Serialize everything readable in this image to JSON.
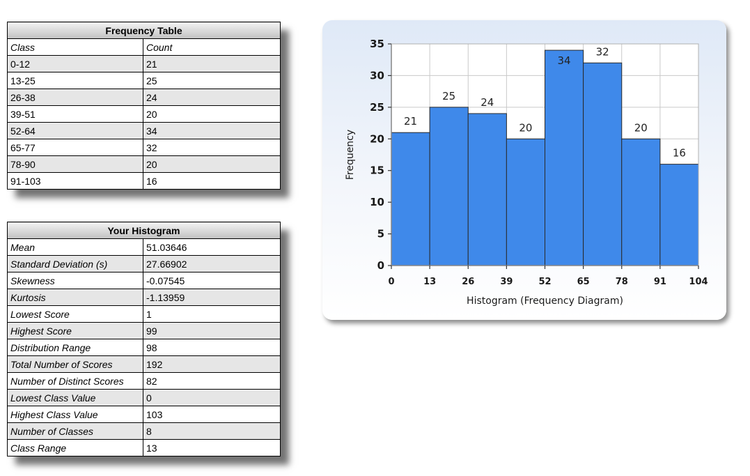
{
  "frequency_table": {
    "title": "Frequency Table",
    "headers": [
      "Class",
      "Count"
    ],
    "rows": [
      {
        "class": "0-12",
        "count": "21"
      },
      {
        "class": "13-25",
        "count": "25"
      },
      {
        "class": "26-38",
        "count": "24"
      },
      {
        "class": "39-51",
        "count": "20"
      },
      {
        "class": "52-64",
        "count": "34"
      },
      {
        "class": "65-77",
        "count": "32"
      },
      {
        "class": "78-90",
        "count": "20"
      },
      {
        "class": "91-103",
        "count": "16"
      }
    ]
  },
  "histogram_stats": {
    "title": "Your Histogram",
    "rows": [
      {
        "label": "Mean",
        "value": "51.03646"
      },
      {
        "label": "Standard Deviation (s)",
        "value": "27.66902"
      },
      {
        "label": "Skewness",
        "value": "-0.07545"
      },
      {
        "label": "Kurtosis",
        "value": "-1.13959"
      },
      {
        "label": "Lowest Score",
        "value": "1"
      },
      {
        "label": "Highest Score",
        "value": "99"
      },
      {
        "label": "Distribution Range",
        "value": "98"
      },
      {
        "label": "Total Number of Scores",
        "value": "192"
      },
      {
        "label": "Number of Distinct Scores",
        "value": "82"
      },
      {
        "label": "Lowest Class Value",
        "value": "0"
      },
      {
        "label": "Highest Class Value",
        "value": "103"
      },
      {
        "label": "Number of Classes",
        "value": "8"
      },
      {
        "label": "Class Range",
        "value": "13"
      }
    ]
  },
  "chart_data": {
    "type": "bar",
    "title": "",
    "xlabel": "Histogram (Frequency Diagram)",
    "ylabel": "Frequency",
    "bin_edges": [
      0,
      13,
      26,
      39,
      52,
      65,
      78,
      91,
      104
    ],
    "values": [
      21,
      25,
      24,
      20,
      34,
      32,
      20,
      16
    ],
    "data_labels": [
      "21",
      "25",
      "24",
      "20",
      "34",
      "32",
      "20",
      "16"
    ],
    "ylim": [
      0,
      35
    ],
    "yticks": [
      0,
      5,
      10,
      15,
      20,
      25,
      30,
      35
    ],
    "xticks": [
      0,
      13,
      26,
      39,
      52,
      65,
      78,
      91,
      104
    ],
    "grid": true,
    "legend": "none",
    "bar_color": "#3f89ea",
    "bar_edge_color": "#2a2a2a"
  }
}
